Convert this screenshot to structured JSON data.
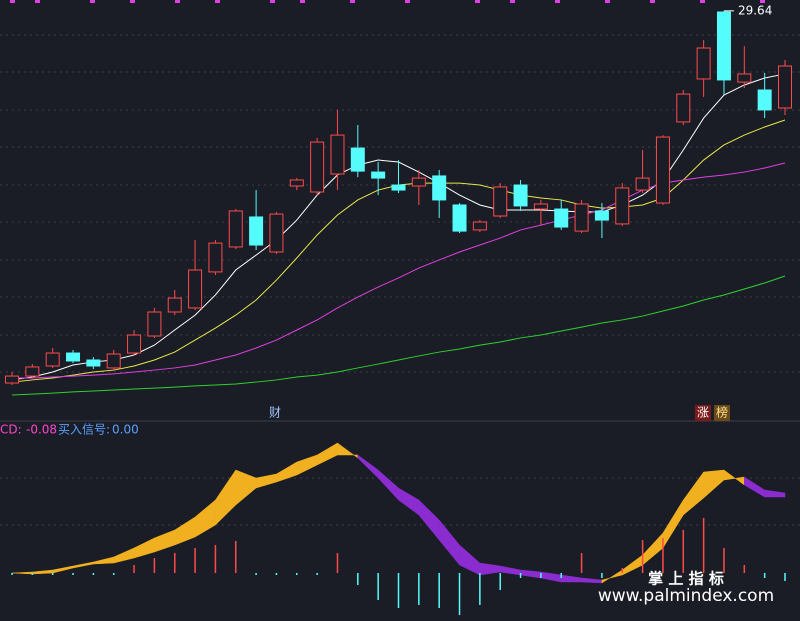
{
  "chart_data": [
    {
      "type": "candlestick",
      "open": [
        10.41,
        10.77,
        11.29,
        11.96,
        11.6,
        11.19,
        11.96,
        12.84,
        14.08,
        14.29,
        16.15,
        17.44,
        18.99,
        17.18,
        20.59,
        20.28,
        21.21,
        22.55,
        21.31,
        20.64,
        20.59,
        21.11,
        19.61,
        18.32,
        19.04,
        20.64,
        19.4,
        19.4,
        18.26,
        19.3,
        18.63,
        20.38,
        19.71,
        23.9,
        26.12,
        29.58,
        25.96,
        25.55,
        24.62
      ],
      "high": [
        10.98,
        11.39,
        12.22,
        12.12,
        11.75,
        12.12,
        13.15,
        14.29,
        15.22,
        17.8,
        17.8,
        19.4,
        20.38,
        19.25,
        21.0,
        23.07,
        24.52,
        23.74,
        21.83,
        21.93,
        21.42,
        21.42,
        19.71,
        18.83,
        20.74,
        20.9,
        19.87,
        19.87,
        19.87,
        19.71,
        20.74,
        22.45,
        23.22,
        25.55,
        28.13,
        29.64,
        27.82,
        26.43,
        27.1
      ],
      "low": [
        10.31,
        10.67,
        11.19,
        11.44,
        11.13,
        11.08,
        11.81,
        12.74,
        13.92,
        14.18,
        15.99,
        17.33,
        17.28,
        17.08,
        20.38,
        20.12,
        20.38,
        21.05,
        20.12,
        20.23,
        19.61,
        18.94,
        18.16,
        18.21,
        18.94,
        19.3,
        18.57,
        18.32,
        18.16,
        17.9,
        18.52,
        20.23,
        19.61,
        23.74,
        25.19,
        25.29,
        25.65,
        24.1,
        24.26
      ],
      "close": [
        10.77,
        11.24,
        11.96,
        11.55,
        11.29,
        11.91,
        12.89,
        14.08,
        14.8,
        16.25,
        17.64,
        19.3,
        17.54,
        19.14,
        20.9,
        22.86,
        23.22,
        21.36,
        21.0,
        20.38,
        21.0,
        19.87,
        18.26,
        18.73,
        20.54,
        19.56,
        19.66,
        18.47,
        19.66,
        18.83,
        20.49,
        21.0,
        23.12,
        25.34,
        27.72,
        26.07,
        26.38,
        24.52,
        26.79
      ],
      "up_color": "#ff4a4a",
      "down_color": "#54fcfc",
      "lines": [
        {
          "color": "#ffffff",
          "values": [
            10.57,
            10.72,
            10.98,
            11.34,
            11.5,
            11.6,
            11.86,
            12.37,
            13.15,
            13.92,
            14.96,
            16.25,
            17.02,
            17.8,
            18.83,
            20.12,
            21.16,
            21.67,
            21.93,
            21.83,
            21.31,
            20.74,
            20.12,
            19.61,
            19.35,
            19.35,
            19.35,
            19.3,
            19.25,
            19.25,
            19.61,
            20.12,
            20.9,
            22.45,
            24.1,
            25.29,
            25.81,
            26.17,
            26.38
          ]
        },
        {
          "color": "#e8e84a",
          "values": [
            10.46,
            10.57,
            10.67,
            10.82,
            10.98,
            11.08,
            11.29,
            11.6,
            12.01,
            12.63,
            13.25,
            13.92,
            14.7,
            15.73,
            16.87,
            18.06,
            19.09,
            19.87,
            20.38,
            20.64,
            20.74,
            20.74,
            20.74,
            20.64,
            20.38,
            20.12,
            19.97,
            19.87,
            19.61,
            19.45,
            19.5,
            19.61,
            19.97,
            20.9,
            21.93,
            22.71,
            23.22,
            23.64,
            24.0
          ]
        },
        {
          "color": "#e040e0",
          "values": [
            10.67,
            10.67,
            10.72,
            10.77,
            10.82,
            10.88,
            10.98,
            11.08,
            11.19,
            11.34,
            11.6,
            11.86,
            12.22,
            12.63,
            13.15,
            13.67,
            14.29,
            14.85,
            15.37,
            15.84,
            16.35,
            16.77,
            17.18,
            17.54,
            17.9,
            18.32,
            18.57,
            18.83,
            19.09,
            19.35,
            19.87,
            20.38,
            20.74,
            20.9,
            21.05,
            21.16,
            21.31,
            21.52,
            21.78
          ]
        },
        {
          "color": "#30d030",
          "values": [
            9.79,
            9.84,
            9.89,
            9.95,
            10.0,
            10.05,
            10.1,
            10.15,
            10.2,
            10.26,
            10.31,
            10.36,
            10.46,
            10.57,
            10.72,
            10.82,
            10.98,
            11.19,
            11.39,
            11.6,
            11.81,
            12.01,
            12.17,
            12.37,
            12.53,
            12.74,
            12.89,
            13.1,
            13.3,
            13.51,
            13.67,
            13.87,
            14.13,
            14.39,
            14.7,
            14.96,
            15.27,
            15.58,
            15.94
          ]
        }
      ],
      "ylim": [
        8.5,
        30.2
      ],
      "annotations": [
        "财",
        "涨",
        "榜"
      ]
    },
    {
      "type": "band",
      "legend": [
        {
          "name": "CD:",
          "value": -0.08,
          "color": "#ff44cc"
        },
        {
          "name": "买入信号:",
          "value": 0,
          "value_label": "0.00",
          "color": "#5aa0ff"
        }
      ],
      "fast": {
        "color_up": "#f0b020",
        "color_down": "#8a2ccf",
        "values": [
          0,
          0.01,
          0.03,
          0.07,
          0.11,
          0.16,
          0.25,
          0.35,
          0.43,
          0.56,
          0.73,
          1.03,
          0.95,
          0.99,
          1.11,
          1.18,
          1.3,
          1.15,
          0.95,
          0.73,
          0.58,
          0.33,
          0.08,
          -0.02,
          0.01,
          -0.02,
          -0.05,
          -0.09,
          -0.09,
          -0.1,
          0.03,
          0.18,
          0.4,
          0.73,
          1.01,
          1.03,
          0.88,
          0.76,
          0.76
        ]
      },
      "slow": {
        "values": [
          0,
          -0.01,
          0,
          0.05,
          0.09,
          0.1,
          0.15,
          0.21,
          0.28,
          0.36,
          0.48,
          0.68,
          0.85,
          0.91,
          0.98,
          1.08,
          1.18,
          1.18,
          1.03,
          0.85,
          0.73,
          0.53,
          0.28,
          0.1,
          0.07,
          0.03,
          0.01,
          -0.02,
          -0.05,
          -0.07,
          -0.02,
          0.08,
          0.25,
          0.58,
          0.75,
          0.93,
          0.96,
          0.83,
          0.8
        ]
      },
      "sticks": {
        "up_color": "#ff4a4a",
        "down_color": "#54fcfc",
        "values": [
          -0.02,
          -0.02,
          -0.02,
          -0.02,
          -0.02,
          -0.02,
          0.08,
          0.15,
          0.2,
          0.25,
          0.28,
          0.32,
          -0.02,
          -0.02,
          -0.02,
          -0.02,
          0.2,
          -0.12,
          -0.27,
          -0.35,
          -0.32,
          -0.35,
          -0.42,
          -0.32,
          -0.17,
          -0.05,
          -0.05,
          -0.05,
          0.2,
          -0.05,
          0.05,
          0.33,
          0.35,
          0.43,
          0.55,
          0.25,
          0.08,
          -0.05,
          -0.08
        ]
      },
      "ylim": [
        -0.48,
        1.33
      ]
    }
  ],
  "watermark": {
    "title": "掌 上 指 标",
    "url": "www.palmindex.com"
  }
}
